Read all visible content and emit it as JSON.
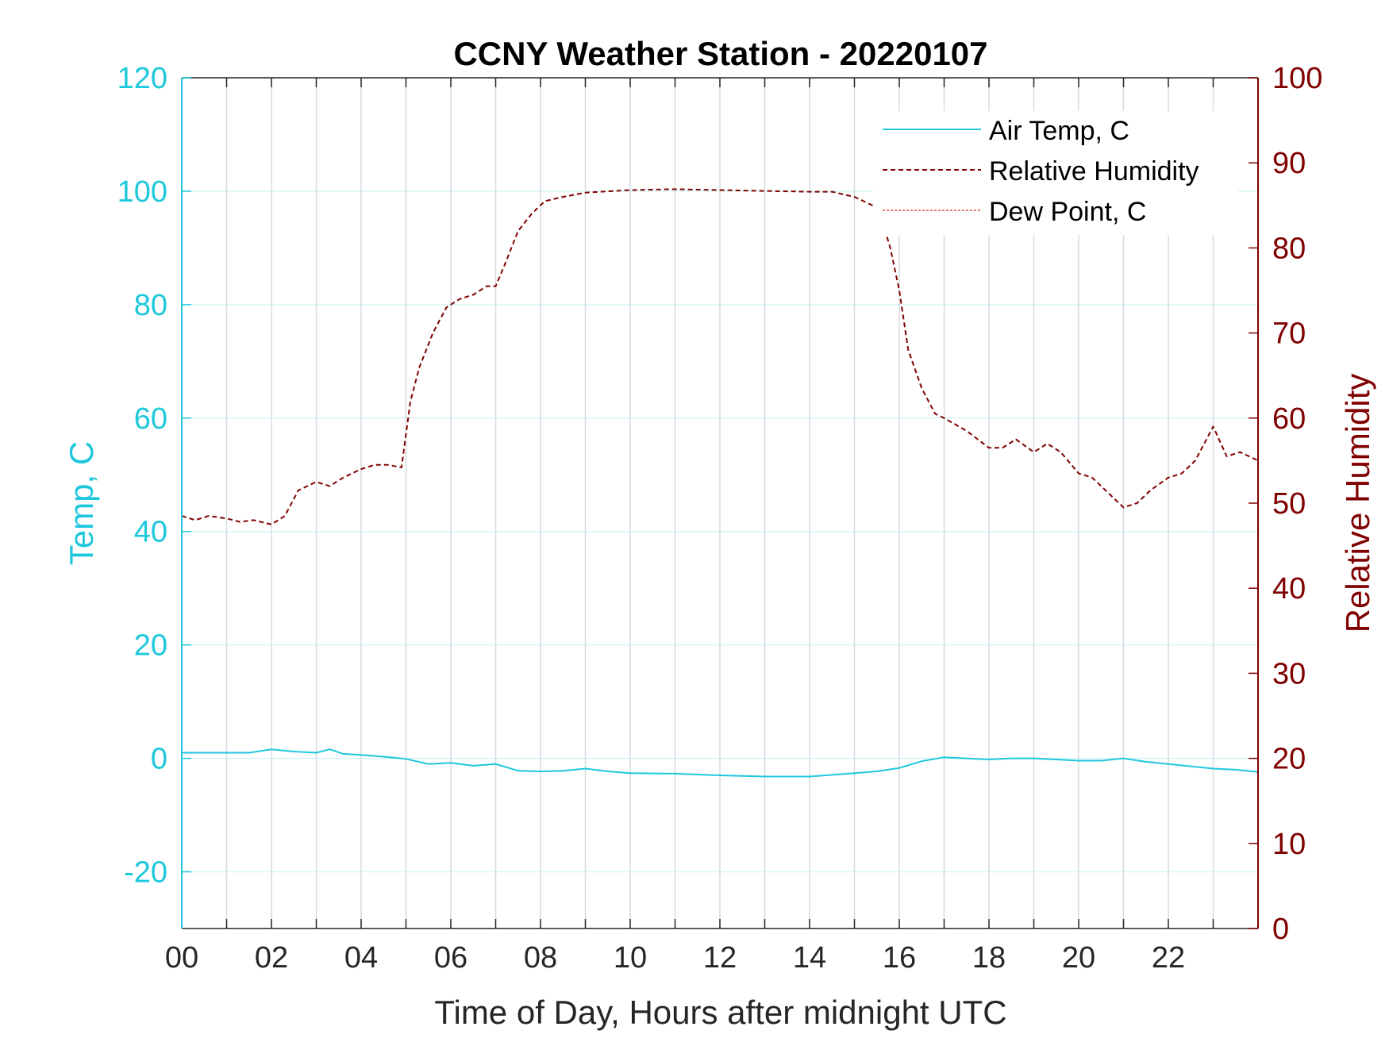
{
  "chart_data": {
    "type": "line",
    "title": "CCNY Weather Station - 20220107",
    "xlabel": "Time of Day, Hours after midnight UTC",
    "ylabel_left": "Temp, C",
    "ylabel_right": "Relative Humidity",
    "xlim": [
      0,
      24
    ],
    "ylim_left": [
      -30,
      120
    ],
    "ylim_right": [
      0,
      100
    ],
    "x_tick_values": [
      0,
      2,
      4,
      6,
      8,
      10,
      12,
      14,
      16,
      18,
      20,
      22
    ],
    "x_tick_labels": [
      "00",
      "02",
      "04",
      "06",
      "08",
      "10",
      "12",
      "14",
      "16",
      "18",
      "20",
      "22"
    ],
    "y_left_ticks": [
      -20,
      0,
      20,
      40,
      60,
      80,
      100,
      120
    ],
    "y_right_ticks": [
      0,
      10,
      20,
      30,
      40,
      50,
      60,
      70,
      80,
      90,
      100
    ],
    "grid": "on",
    "legend_position": "top-right",
    "colors": {
      "left_axis": "#1ec8dc",
      "right_axis": "#800000",
      "air_temp": "#1ec8dc",
      "humidity": "#800000",
      "dew_point": "#e8503c",
      "grid_vertical": "#d6dbe0",
      "grid_horizontal": "#d8f4f8"
    },
    "series": [
      {
        "name": "Air Temp, C",
        "axis": "left",
        "style": "solid",
        "x": [
          0,
          0.5,
          1,
          1.5,
          2,
          2.5,
          3,
          3.3,
          3.6,
          4,
          4.5,
          5,
          5.5,
          6,
          6.5,
          7,
          7.5,
          8,
          8.5,
          9,
          9.5,
          10,
          11,
          12,
          13,
          14,
          15,
          15.5,
          16,
          16.5,
          17,
          17.5,
          18,
          18.5,
          19,
          19.5,
          20,
          20.5,
          21,
          21.5,
          22,
          22.5,
          23,
          23.5,
          24
        ],
        "values": [
          1,
          1,
          1,
          1,
          1.6,
          1.2,
          1,
          1.6,
          0.8,
          0.6,
          0.3,
          -0.1,
          -1,
          -0.8,
          -1.3,
          -1,
          -2.2,
          -2.3,
          -2.2,
          -1.8,
          -2.3,
          -2.6,
          -2.7,
          -3,
          -3.2,
          -3.2,
          -2.6,
          -2.3,
          -1.7,
          -0.5,
          0.2,
          0,
          -0.2,
          0,
          0,
          -0.2,
          -0.4,
          -0.4,
          0,
          -0.6,
          -1,
          -1.4,
          -1.8,
          -2,
          -2.4
        ]
      },
      {
        "name": "Relative Humidity",
        "axis": "right",
        "style": "dashed",
        "x": [
          0,
          0.3,
          0.6,
          1,
          1.3,
          1.6,
          2,
          2.3,
          2.6,
          3,
          3.3,
          3.6,
          4,
          4.3,
          4.6,
          4.9,
          5.1,
          5.3,
          5.6,
          5.9,
          6.2,
          6.5,
          6.8,
          7,
          7.2,
          7.5,
          7.8,
          8.1,
          8.5,
          9,
          10,
          11,
          12,
          13,
          14,
          14.5,
          15,
          15.2,
          15.4,
          15.6,
          15.8,
          16,
          16.2,
          16.5,
          16.8,
          17,
          17.5,
          18,
          18.3,
          18.6,
          19,
          19.3,
          19.6,
          20,
          20.3,
          20.6,
          21,
          21.3,
          21.6,
          22,
          22.3,
          22.6,
          22.8,
          23,
          23.3,
          23.6,
          24
        ],
        "values": [
          48.5,
          48,
          48.5,
          48.2,
          47.8,
          48,
          47.5,
          48.5,
          51.5,
          52.5,
          52,
          53,
          54,
          54.5,
          54.5,
          54.2,
          62,
          66,
          70,
          73,
          74,
          74.5,
          75.5,
          75.5,
          78,
          82,
          84,
          85.5,
          86,
          86.5,
          86.8,
          86.9,
          86.8,
          86.7,
          86.6,
          86.6,
          86,
          85.5,
          85,
          83.5,
          80,
          75,
          68,
          63.5,
          60.5,
          60,
          58.5,
          56.5,
          56.5,
          57.5,
          56,
          57,
          56,
          53.5,
          53,
          51.5,
          49.5,
          50,
          51.5,
          53,
          53.5,
          55,
          57,
          59,
          55.5,
          56,
          55
        ]
      },
      {
        "name": "Dew Point, C",
        "axis": "left",
        "style": "dotted",
        "x": [],
        "values": []
      }
    ]
  }
}
